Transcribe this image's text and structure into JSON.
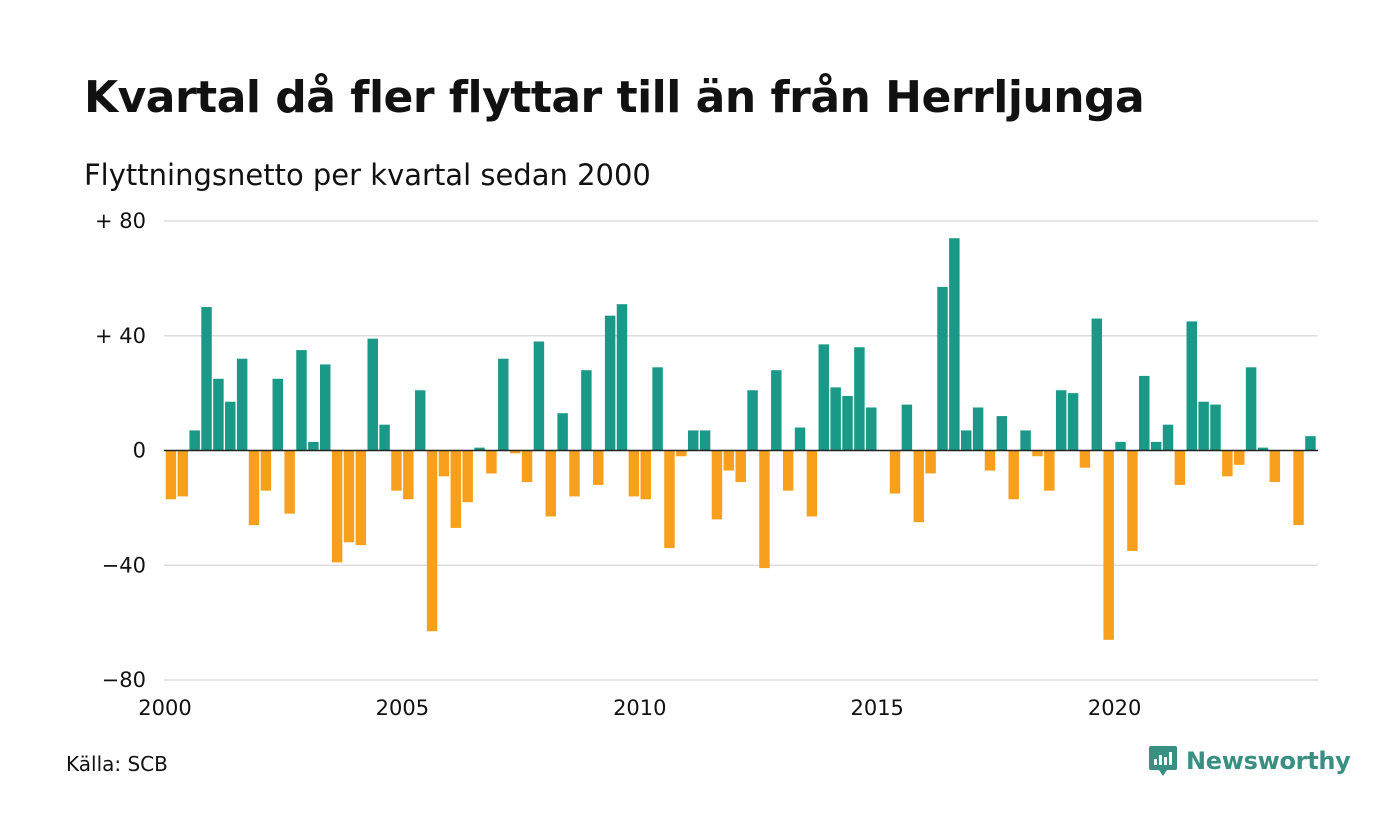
{
  "title": "Kvartal då fler flyttar till än från Herrljunga",
  "subtitle": "Flyttningsnetto per kvartal sedan 2000",
  "source": "Källa: SCB",
  "brand": {
    "name": "Newsworthy",
    "icon": "newsworthy-logo-icon",
    "color": "#3a8f83"
  },
  "chart_data": {
    "type": "bar",
    "x_start": "2000 Q1",
    "y_ticks": [
      {
        "value": 80,
        "label": "+ 80"
      },
      {
        "value": 40,
        "label": "+ 40"
      },
      {
        "value": 0,
        "label": "0"
      },
      {
        "value": -40,
        "label": "−40"
      },
      {
        "value": -80,
        "label": "−80"
      }
    ],
    "x_ticks": [
      {
        "year": 2000,
        "label": "2000"
      },
      {
        "year": 2005,
        "label": "2005"
      },
      {
        "year": 2010,
        "label": "2010"
      },
      {
        "year": 2015,
        "label": "2015"
      },
      {
        "year": 2020,
        "label": "2020"
      }
    ],
    "ylim": [
      -80,
      80
    ],
    "grid": true,
    "positive_color": "#1a9988",
    "negative_color": "#f8a01e",
    "values": [
      -17,
      -16,
      7,
      50,
      25,
      17,
      32,
      -26,
      -14,
      25,
      -22,
      35,
      3,
      30,
      -39,
      -32,
      -33,
      39,
      9,
      -14,
      -17,
      21,
      -63,
      -9,
      -27,
      -18,
      1,
      -8,
      32,
      -1,
      -11,
      38,
      -23,
      13,
      -16,
      28,
      -12,
      47,
      51,
      -16,
      -17,
      29,
      -34,
      -2,
      7,
      7,
      -24,
      -7,
      -11,
      21,
      -41,
      28,
      -14,
      8,
      -23,
      37,
      22,
      19,
      36,
      15,
      0,
      -15,
      16,
      -25,
      -8,
      57,
      74,
      7,
      15,
      -7,
      12,
      -17,
      7,
      -2,
      -14,
      21,
      20,
      -6,
      46,
      -66,
      3,
      -35,
      26,
      3,
      9,
      -12,
      45,
      17,
      16,
      -9,
      -5,
      29,
      1,
      -11,
      0,
      -26,
      5
    ]
  }
}
